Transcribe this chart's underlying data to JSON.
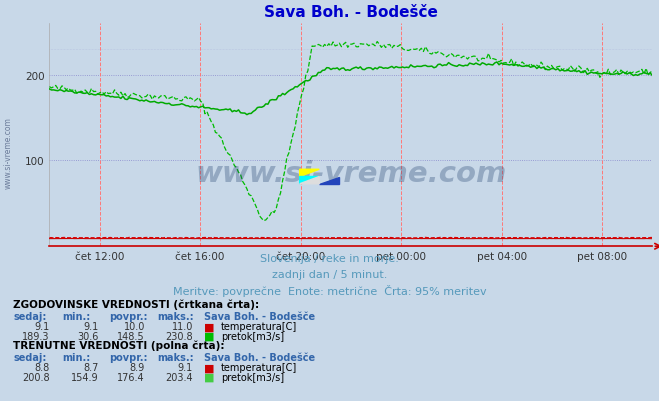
{
  "title": "Sava Boh. - Bodešče",
  "title_color": "#0000cc",
  "bg_color": "#c8d8e8",
  "plot_bg_color": "#c8d8e8",
  "ylim": [
    0,
    260
  ],
  "yticks": [
    100,
    200
  ],
  "x_tick_positions": [
    2,
    6,
    10,
    14,
    18,
    22
  ],
  "x_tick_labels": [
    "čet 12:00",
    "čet 16:00",
    "čet 20:00",
    "pet 00:00",
    "pet 04:00",
    "pet 08:00"
  ],
  "subtitle1": "Slovenija / reke in morje.",
  "subtitle2": "zadnji dan / 5 minut.",
  "subtitle3": "Meritve: povprečne  Enote: metrične  Črta: 95% meritev",
  "subtitle_color": "#5599bb",
  "watermark": "www.si-vreme.com",
  "watermark_color": "#1a3a6a",
  "watermark_alpha": 0.3,
  "hist_pretok_color": "#00bb00",
  "curr_pretok_color": "#00aa00",
  "hist_temp_color": "#dd0000",
  "curr_temp_color": "#cc0000",
  "legend_title1": "ZGODOVINSKE VREDNOSTI (črtkana črta):",
  "legend_title2": "TRENUTNE VREDNOSTI (polna črta):",
  "legend_cols": [
    "sedaj:",
    "min.:",
    "povpr.:",
    "maks.:"
  ],
  "legend_temp_hist": [
    9.1,
    9.1,
    10.0,
    11.0
  ],
  "legend_pretok_hist": [
    189.3,
    30.6,
    148.5,
    230.8
  ],
  "legend_temp_curr": [
    8.8,
    8.7,
    8.9,
    9.1
  ],
  "legend_pretok_curr": [
    200.8,
    154.9,
    176.4,
    203.4
  ],
  "station_name": "Sava Boh. - Bodešče",
  "temp_color_box": "#cc0000",
  "pretok_color_box": "#00bb00",
  "pretok_curr_color_box": "#44cc44",
  "n_points": 288
}
